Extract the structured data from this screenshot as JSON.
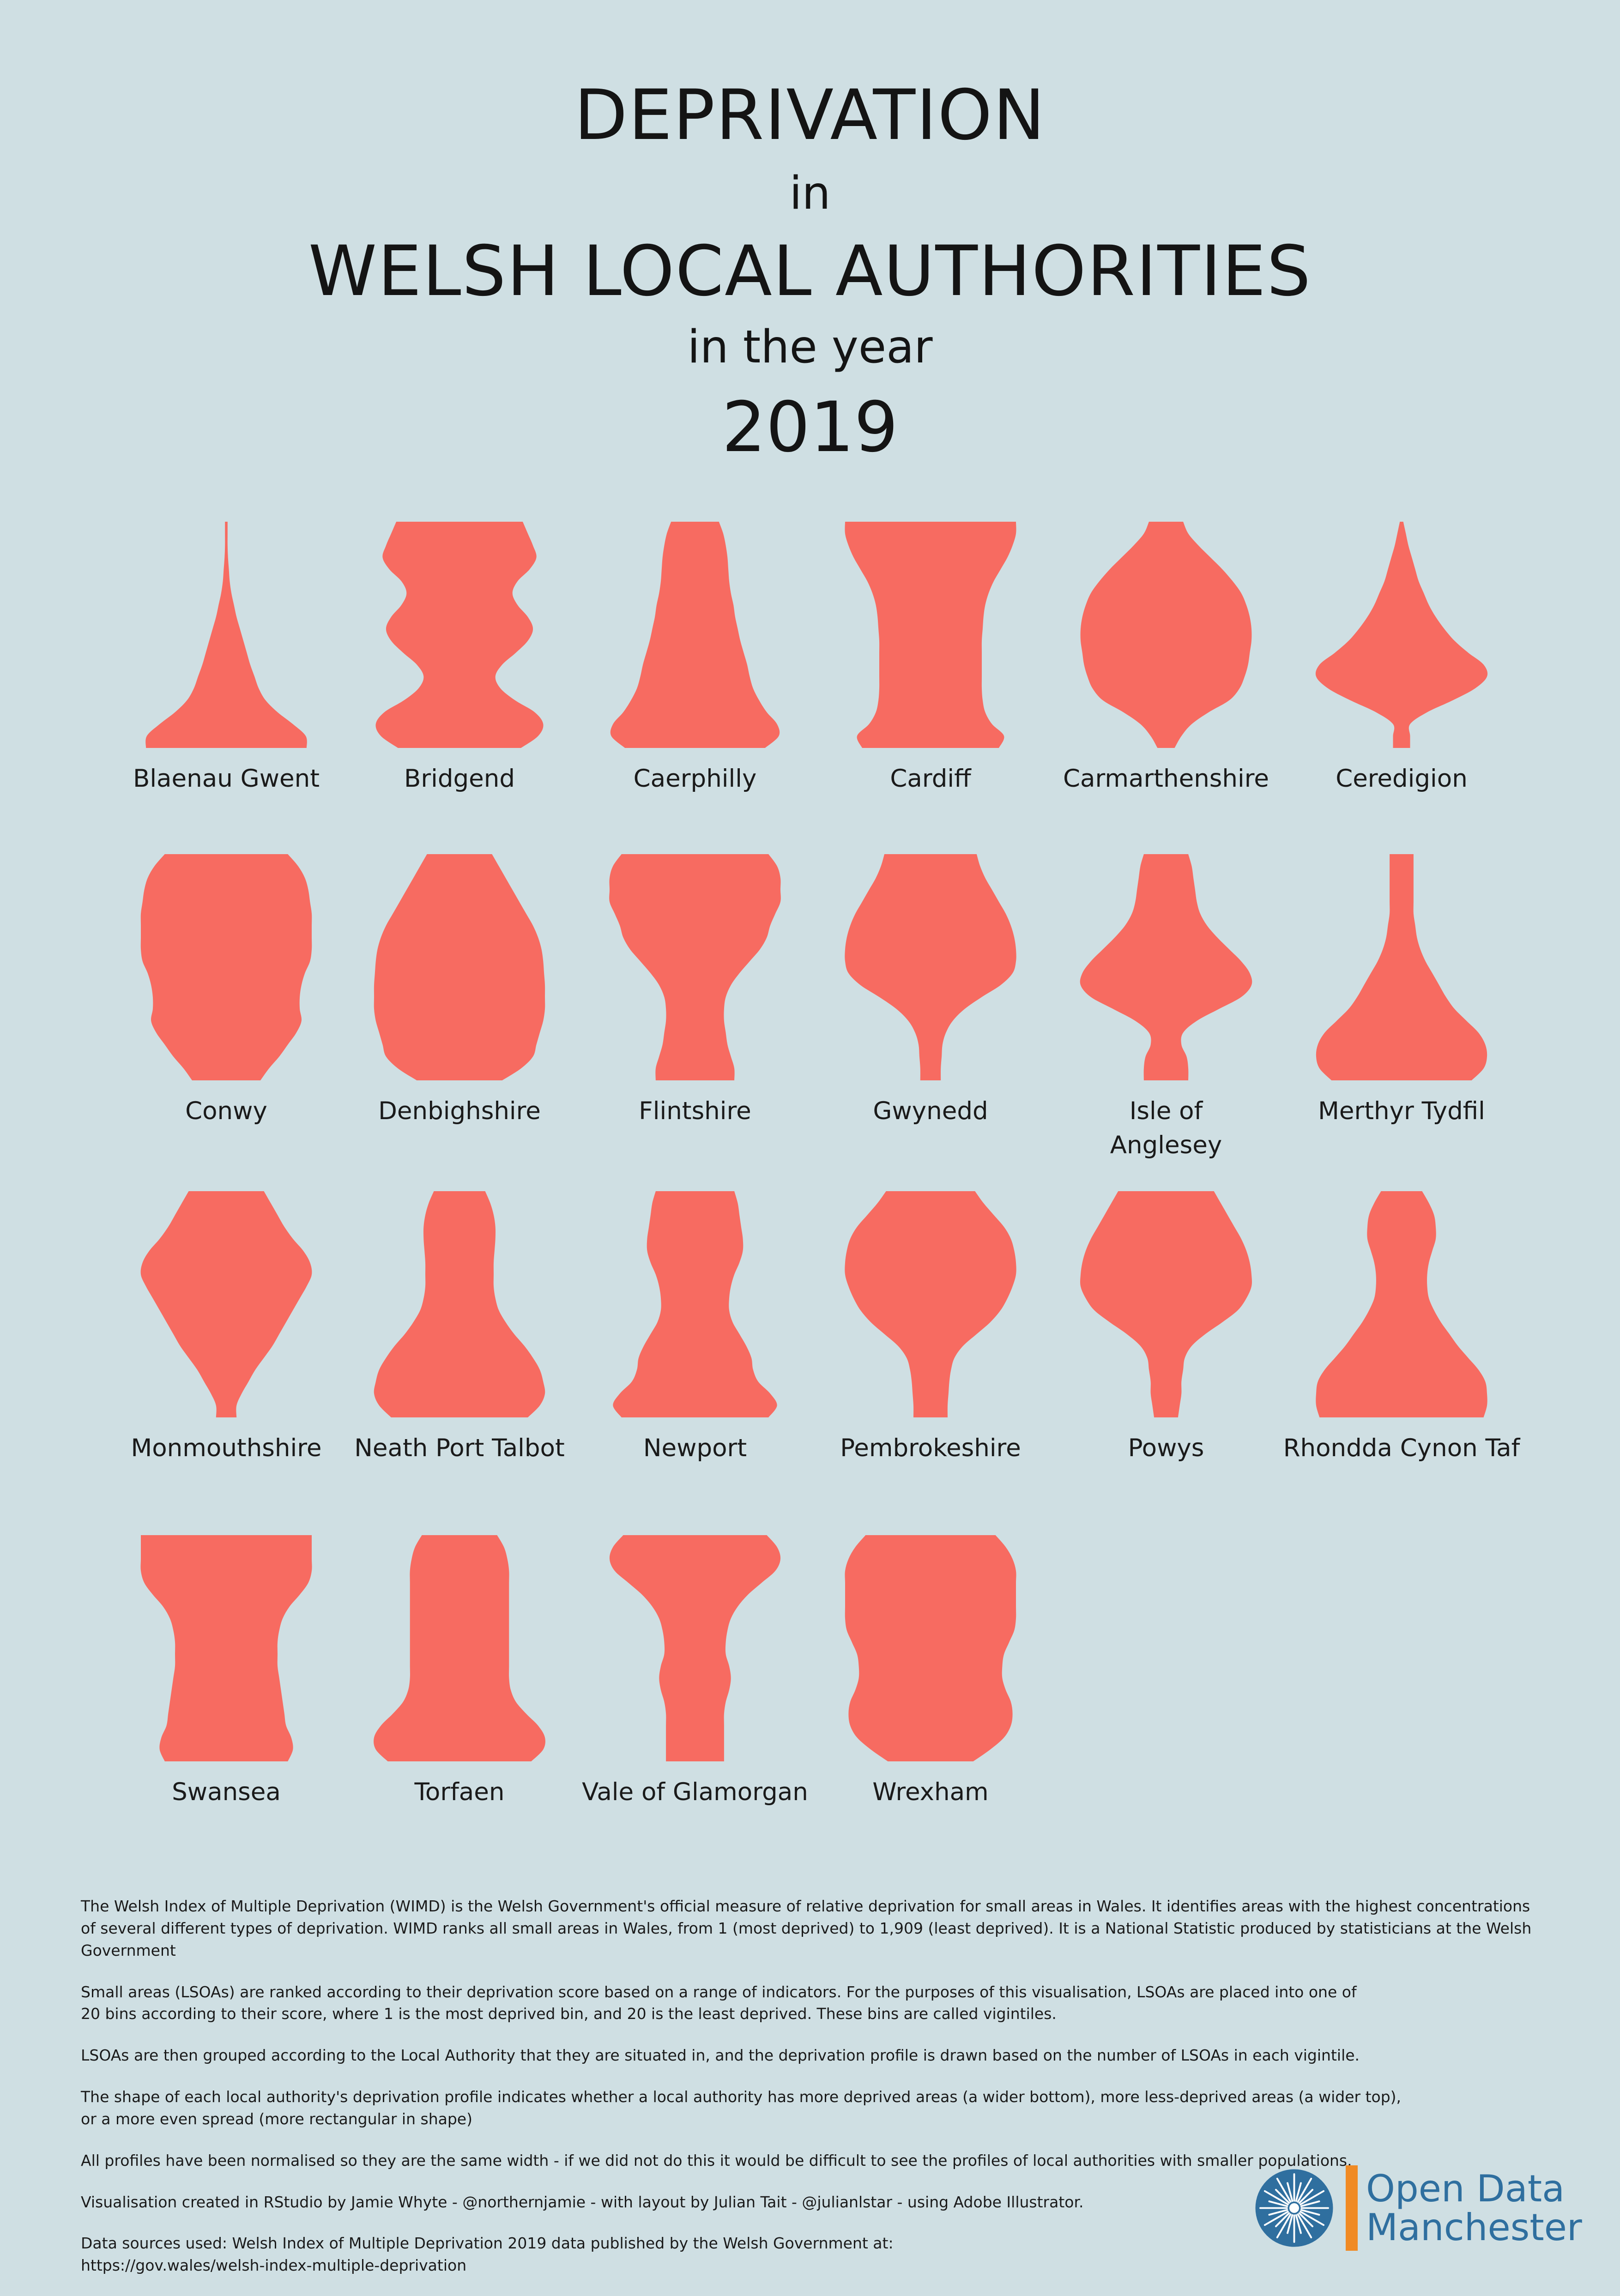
{
  "title": {
    "line1": "DEPRIVATION",
    "line2": "in",
    "line3": "WELSH LOCAL AUTHORITIES",
    "line4": "in the year",
    "line5": "2019"
  },
  "colors": {
    "background": "#cfdfe3",
    "shape": "#f76b61",
    "logo_blue": "#2f6f9f",
    "logo_orange": "#f08a24"
  },
  "chart_data": {
    "type": "violin-profile",
    "bins": "vigintiles 1 (bottom, most deprived) to 20 (top, least deprived)",
    "profiles": [
      {
        "name": "Blaenau Gwent",
        "widths": [
          0.94,
          0.93,
          0.78,
          0.6,
          0.46,
          0.38,
          0.33,
          0.28,
          0.24,
          0.2,
          0.16,
          0.12,
          0.09,
          0.06,
          0.04,
          0.03,
          0.02,
          0.0,
          0.0,
          0.0
        ]
      },
      {
        "name": "Bridgend",
        "widths": [
          0.72,
          0.92,
          0.98,
          0.88,
          0.65,
          0.48,
          0.42,
          0.5,
          0.66,
          0.8,
          0.86,
          0.8,
          0.68,
          0.62,
          0.68,
          0.82,
          0.9,
          0.86,
          0.8,
          0.74
        ]
      },
      {
        "name": "Caerphilly",
        "widths": [
          0.82,
          0.98,
          0.96,
          0.84,
          0.75,
          0.68,
          0.64,
          0.61,
          0.57,
          0.53,
          0.5,
          0.47,
          0.45,
          0.42,
          0.4,
          0.39,
          0.38,
          0.36,
          0.33,
          0.28
        ]
      },
      {
        "name": "Cardiff",
        "widths": [
          0.8,
          0.86,
          0.72,
          0.64,
          0.61,
          0.6,
          0.6,
          0.6,
          0.6,
          0.6,
          0.61,
          0.62,
          0.64,
          0.68,
          0.74,
          0.82,
          0.9,
          0.96,
          1.0,
          1.0
        ]
      },
      {
        "name": "Carmarthenshire",
        "widths": [
          0.1,
          0.18,
          0.3,
          0.5,
          0.74,
          0.86,
          0.92,
          0.96,
          0.98,
          1.0,
          1.0,
          0.98,
          0.94,
          0.88,
          0.78,
          0.66,
          0.52,
          0.38,
          0.26,
          0.2
        ]
      },
      {
        "name": "Ceredigion",
        "widths": [
          0.1,
          0.1,
          0.1,
          0.3,
          0.6,
          0.86,
          1.0,
          0.96,
          0.78,
          0.62,
          0.5,
          0.4,
          0.32,
          0.26,
          0.2,
          0.16,
          0.12,
          0.08,
          0.05,
          0.02
        ]
      },
      {
        "name": "Conwy",
        "widths": [
          0.4,
          0.5,
          0.62,
          0.72,
          0.82,
          0.88,
          0.86,
          0.86,
          0.88,
          0.92,
          0.98,
          1.0,
          1.0,
          1.0,
          1.0,
          0.98,
          0.96,
          0.92,
          0.84,
          0.72
        ]
      },
      {
        "name": "Denbighshire",
        "widths": [
          0.5,
          0.72,
          0.86,
          0.9,
          0.94,
          0.98,
          1.0,
          1.0,
          1.0,
          0.99,
          0.98,
          0.96,
          0.92,
          0.86,
          0.78,
          0.7,
          0.62,
          0.54,
          0.46,
          0.38
        ]
      },
      {
        "name": "Flintshire",
        "widths": [
          0.46,
          0.46,
          0.42,
          0.38,
          0.36,
          0.34,
          0.34,
          0.36,
          0.42,
          0.52,
          0.64,
          0.76,
          0.84,
          0.88,
          0.94,
          1.0,
          1.0,
          1.0,
          0.96,
          0.86
        ]
      },
      {
        "name": "Gwynedd",
        "widths": [
          0.12,
          0.12,
          0.13,
          0.14,
          0.18,
          0.26,
          0.4,
          0.6,
          0.82,
          0.96,
          1.0,
          1.0,
          0.98,
          0.94,
          0.88,
          0.8,
          0.72,
          0.64,
          0.58,
          0.54
        ]
      },
      {
        "name": "Isle of Anglesey",
        "widths": [
          0.26,
          0.26,
          0.24,
          0.18,
          0.2,
          0.36,
          0.62,
          0.88,
          1.0,
          0.98,
          0.88,
          0.74,
          0.6,
          0.48,
          0.4,
          0.36,
          0.34,
          0.32,
          0.3,
          0.26
        ]
      },
      {
        "name": "Merthyr Tydfil",
        "widths": [
          0.82,
          0.96,
          1.0,
          0.98,
          0.9,
          0.76,
          0.62,
          0.52,
          0.44,
          0.36,
          0.28,
          0.22,
          0.18,
          0.16,
          0.14,
          0.14,
          0.14,
          0.14,
          0.14,
          0.14
        ]
      },
      {
        "name": "Monmouthshire",
        "widths": [
          0.12,
          0.12,
          0.18,
          0.26,
          0.34,
          0.44,
          0.54,
          0.62,
          0.7,
          0.78,
          0.86,
          0.94,
          1.0,
          0.98,
          0.9,
          0.78,
          0.68,
          0.6,
          0.52,
          0.44
        ]
      },
      {
        "name": "Neath Port Talbot",
        "widths": [
          0.8,
          0.94,
          1.0,
          0.98,
          0.94,
          0.86,
          0.76,
          0.64,
          0.54,
          0.46,
          0.42,
          0.4,
          0.4,
          0.4,
          0.41,
          0.42,
          0.42,
          0.4,
          0.36,
          0.3
        ]
      },
      {
        "name": "Newport",
        "widths": [
          0.86,
          0.96,
          0.88,
          0.74,
          0.68,
          0.66,
          0.6,
          0.52,
          0.44,
          0.4,
          0.4,
          0.42,
          0.46,
          0.52,
          0.56,
          0.56,
          0.54,
          0.52,
          0.5,
          0.46
        ]
      },
      {
        "name": "Pembrokeshire",
        "widths": [
          0.2,
          0.2,
          0.21,
          0.22,
          0.24,
          0.28,
          0.38,
          0.54,
          0.7,
          0.82,
          0.9,
          0.96,
          1.0,
          1.0,
          0.98,
          0.94,
          0.86,
          0.74,
          0.62,
          0.52
        ]
      },
      {
        "name": "Powys",
        "widths": [
          0.14,
          0.16,
          0.18,
          0.18,
          0.2,
          0.22,
          0.3,
          0.46,
          0.66,
          0.84,
          0.94,
          1.0,
          1.0,
          0.98,
          0.94,
          0.88,
          0.8,
          0.72,
          0.64,
          0.56
        ]
      },
      {
        "name": "Rhondda Cynon Taf",
        "widths": [
          0.96,
          1.0,
          1.0,
          0.98,
          0.9,
          0.78,
          0.66,
          0.56,
          0.46,
          0.38,
          0.32,
          0.3,
          0.3,
          0.32,
          0.36,
          0.4,
          0.4,
          0.38,
          0.32,
          0.24
        ]
      },
      {
        "name": "Swansea",
        "widths": [
          0.72,
          0.78,
          0.76,
          0.7,
          0.68,
          0.66,
          0.64,
          0.62,
          0.6,
          0.6,
          0.6,
          0.62,
          0.66,
          0.74,
          0.86,
          0.96,
          1.0,
          1.0,
          1.0,
          1.0
        ]
      },
      {
        "name": "Torfaen",
        "widths": [
          0.84,
          0.98,
          1.0,
          0.92,
          0.78,
          0.66,
          0.6,
          0.58,
          0.58,
          0.58,
          0.58,
          0.58,
          0.58,
          0.58,
          0.58,
          0.58,
          0.58,
          0.56,
          0.52,
          0.44
        ]
      },
      {
        "name": "Vale of Glamorgan",
        "widths": [
          0.34,
          0.34,
          0.34,
          0.34,
          0.34,
          0.36,
          0.4,
          0.42,
          0.4,
          0.36,
          0.36,
          0.38,
          0.42,
          0.5,
          0.62,
          0.78,
          0.94,
          1.0,
          0.96,
          0.84
        ]
      },
      {
        "name": "Wrexham",
        "widths": [
          0.5,
          0.7,
          0.86,
          0.94,
          0.96,
          0.94,
          0.88,
          0.84,
          0.84,
          0.86,
          0.92,
          0.98,
          1.0,
          1.0,
          1.0,
          1.0,
          1.0,
          0.96,
          0.88,
          0.76
        ]
      }
    ]
  },
  "labels": [
    {
      "l1": "Blaenau Gwent",
      "l2": ""
    },
    {
      "l1": "Bridgend",
      "l2": ""
    },
    {
      "l1": "Caerphilly",
      "l2": ""
    },
    {
      "l1": "Cardiff",
      "l2": ""
    },
    {
      "l1": "Carmarthenshire",
      "l2": ""
    },
    {
      "l1": "Ceredigion",
      "l2": ""
    },
    {
      "l1": "Conwy",
      "l2": ""
    },
    {
      "l1": "Denbighshire",
      "l2": ""
    },
    {
      "l1": "Flintshire",
      "l2": ""
    },
    {
      "l1": "Gwynedd",
      "l2": ""
    },
    {
      "l1": "Isle of",
      "l2": "Anglesey"
    },
    {
      "l1": "Merthyr Tydfil",
      "l2": ""
    },
    {
      "l1": "Monmouthshire",
      "l2": ""
    },
    {
      "l1": "Neath Port Talbot",
      "l2": ""
    },
    {
      "l1": "Newport",
      "l2": ""
    },
    {
      "l1": "Pembrokeshire",
      "l2": ""
    },
    {
      "l1": "Powys",
      "l2": ""
    },
    {
      "l1": "Rhondda Cynon Taf",
      "l2": ""
    },
    {
      "l1": "Swansea",
      "l2": ""
    },
    {
      "l1": "Torfaen",
      "l2": ""
    },
    {
      "l1": "Vale of Glamorgan",
      "l2": ""
    },
    {
      "l1": "Wrexham",
      "l2": ""
    }
  ],
  "notes": {
    "p1a": "The Welsh Index of Multiple Deprivation (WIMD) is the Welsh Government's official measure of relative deprivation for small areas in Wales. It identifies areas with the highest concentrations",
    "p1b": "of several different types of deprivation. WIMD ranks all small areas in Wales, from 1 (most deprived) to 1,909 (least deprived). It is a National Statistic produced by statisticians at the Welsh Government",
    "p2a": "Small areas (LSOAs) are ranked according to their deprivation score based on a range of indicators. For the purposes of this visualisation, LSOAs are placed into one of",
    "p2b": "20 bins according to their score, where 1 is the most deprived bin, and 20 is the least deprived. These bins are called vigintiles.",
    "p3": "LSOAs are then grouped according to the Local Authority that they are situated in, and the deprivation profile is drawn based on the number of LSOAs in each vigintile.",
    "p4a": "The shape of each local authority's deprivation profile indicates whether a local authority has more deprived areas (a wider bottom), more less-deprived areas (a wider top),",
    "p4b": "or a more even spread (more rectangular in shape)",
    "p5": "All profiles have been normalised so they are the same width - if we did not do this it would be difficult to see the profiles of local authorities with smaller populations.",
    "p6": "Visualisation created in RStudio by Jamie Whyte - @northernjamie - with layout by Julian Tait - @julianlstar - using Adobe Illustrator.",
    "p7a": "Data sources used: Welsh Index of Multiple Deprivation 2019 data published by the Welsh Government at:",
    "p7b": "https://gov.wales/welsh-index-multiple-deprivation"
  },
  "logo": {
    "line1": "Open Data",
    "line2": "Manchester",
    "icon": "starburst-icon"
  }
}
